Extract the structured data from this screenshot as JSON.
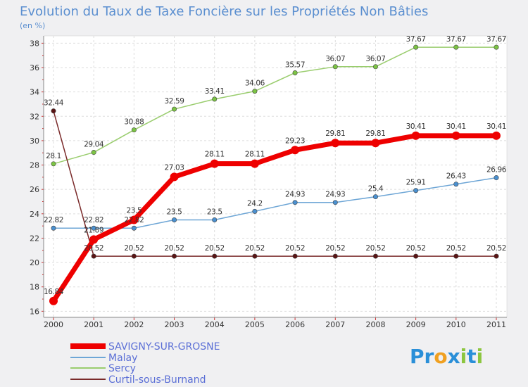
{
  "chart_data": {
    "type": "line",
    "title": "Evolution du Taux de Taxe Foncière sur les Propriétés Non Bâties",
    "subtitle": "(en %)",
    "x": [
      "2000",
      "2001",
      "2002",
      "2003",
      "2004",
      "2005",
      "2006",
      "2007",
      "2008",
      "2009",
      "2010",
      "2011"
    ],
    "ylim": [
      15.5,
      38.6
    ],
    "yticks": [
      "16",
      "18",
      "20",
      "22",
      "24",
      "26",
      "28",
      "30",
      "32",
      "34",
      "36",
      "38"
    ],
    "series": [
      {
        "name": "Sercy",
        "color": "#9acd6e",
        "marker_color": "#7cc444",
        "values": [
          28.1,
          29.04,
          30.88,
          32.59,
          33.41,
          34.06,
          35.57,
          36.07,
          36.07,
          37.67,
          37.67,
          37.67
        ],
        "labels": [
          "28.1",
          "29.04",
          "30.88",
          "32.59",
          "33.41",
          "34.06",
          "35.57",
          "36.07",
          "36.07",
          "37.67",
          "37.67",
          "37.67"
        ]
      },
      {
        "name": "Malay",
        "color": "#6ea6d6",
        "marker_color": "#4a90d0",
        "values": [
          22.82,
          22.82,
          22.82,
          23.5,
          23.5,
          24.2,
          24.93,
          24.93,
          25.4,
          25.91,
          26.43,
          26.96
        ],
        "labels": [
          "22.82",
          "22.82",
          "22.82",
          "23.5",
          "23.5",
          "24.2",
          "24.93",
          "24.93",
          "25.4",
          "25.91",
          "26.43",
          "26.96"
        ]
      },
      {
        "name": "Curtil-sous-Burnand",
        "color": "#7a2a2a",
        "marker_color": "#5a1414",
        "values": [
          32.44,
          20.52,
          20.52,
          20.52,
          20.52,
          20.52,
          20.52,
          20.52,
          20.52,
          20.52,
          20.52,
          20.52
        ],
        "labels": [
          "32.44",
          "20.52",
          "20.52",
          "20.52",
          "20.52",
          "20.52",
          "20.52",
          "20.52",
          "20.52",
          "20.52",
          "20.52",
          "20.52"
        ]
      },
      {
        "name": "SAVIGNY-SUR-GROSNE",
        "color": "#ee0000",
        "marker_color": "#ee0000",
        "values": [
          16.84,
          21.89,
          23.5,
          27.03,
          28.11,
          28.11,
          29.23,
          29.81,
          29.81,
          30.41,
          30.41,
          30.41
        ],
        "labels": [
          "16.84",
          "21.89",
          "23.5",
          "27.03",
          "28.11",
          "28.11",
          "29.23",
          "29.81",
          "29.81",
          "30.41",
          "30.41",
          "30.41"
        ]
      }
    ],
    "legend": [
      "SAVIGNY-SUR-GROSNE",
      "Malay",
      "Sercy",
      "Curtil-sous-Burnand"
    ],
    "legend_position": "bottom-left"
  },
  "watermark": {
    "text": "Proxiti",
    "letters": [
      "P",
      "r",
      "o",
      "x",
      "i",
      "t",
      "i"
    ],
    "colors": [
      "#2a8fd8",
      "#2a8fd8",
      "#f0a020",
      "#2a8fd8",
      "#8cc63f",
      "#2a8fd8",
      "#8cc63f"
    ]
  }
}
